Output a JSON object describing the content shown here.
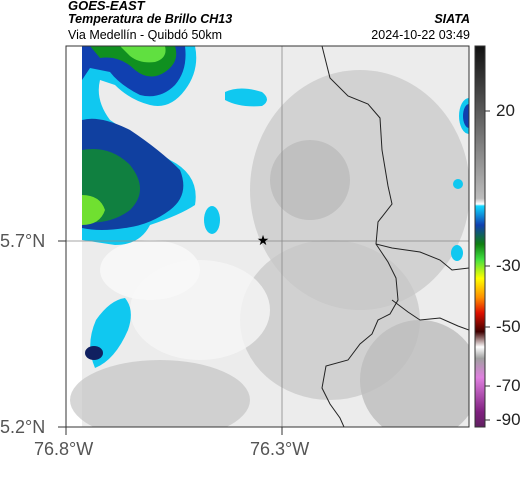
{
  "header": {
    "satellite": "GOES-EAST",
    "product": "Temperatura de Brillo CH13",
    "route": "Via Medellín - Quibdó 50km",
    "organization": "SIATA",
    "datetime": "2024-10-22 03:49"
  },
  "map": {
    "lat_labels": [
      "5.7°N",
      "5.2°N"
    ],
    "lon_labels": [
      "76.8°W",
      "76.3°W"
    ],
    "marker": "star"
  },
  "colorbar": {
    "tick_labels": [
      "20",
      "-30",
      "-50",
      "-70",
      "-90"
    ],
    "colors": [
      "#1a1a1a",
      "#bdbdbd",
      "#ffffff",
      "#00c8ff",
      "#1030a0",
      "#00a000",
      "#ffff00",
      "#ff8000",
      "#e00000",
      "#400000",
      "#e080e0",
      "#903090"
    ]
  }
}
